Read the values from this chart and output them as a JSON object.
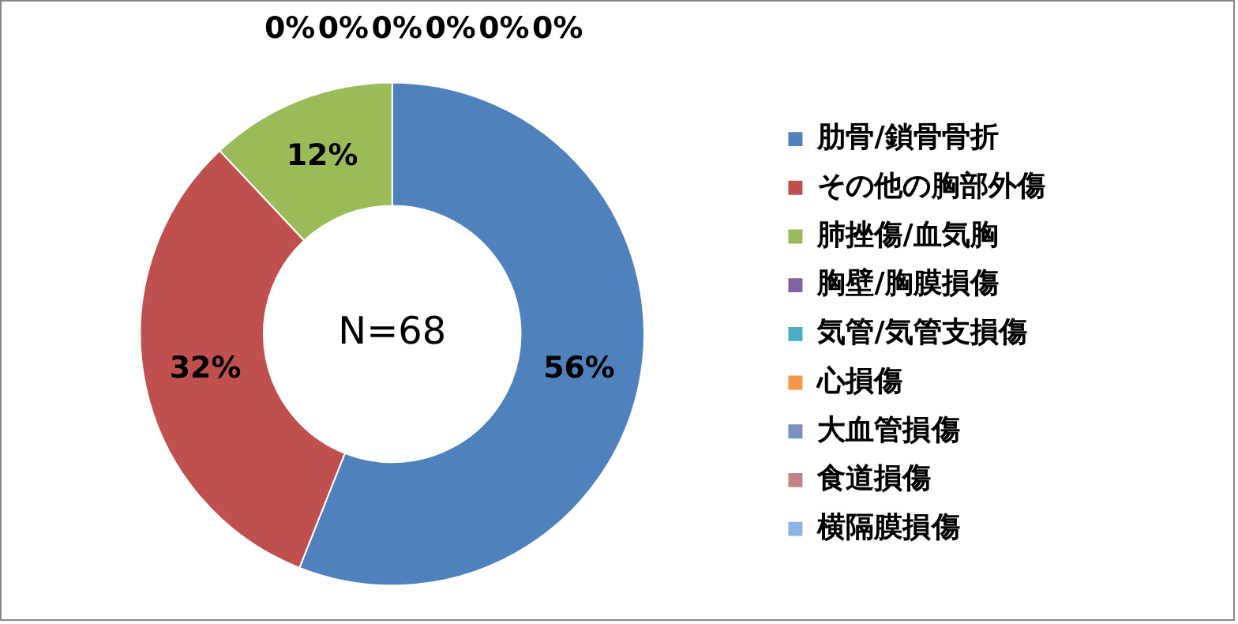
{
  "chart_data": {
    "type": "donut",
    "categories": [
      "肋骨/鎖骨骨折",
      "その他の胸部外傷",
      "肺挫傷/血気胸",
      "胸壁/胸膜損傷",
      "気管/気管支損傷",
      "心損傷",
      "大血管損傷",
      "食道損傷",
      "横隔膜損傷"
    ],
    "values": [
      56,
      32,
      12,
      0,
      0,
      0,
      0,
      0,
      0
    ],
    "value_labels": [
      "56%",
      "32%",
      "12%",
      "0%",
      "0%",
      "0%",
      "0%",
      "0%",
      "0%"
    ],
    "colors": [
      "#4f81bd",
      "#c0504d",
      "#9bbb59",
      "#8064a2",
      "#4bacc6",
      "#f79646",
      "#7891c0",
      "#c28483",
      "#8db3e2"
    ],
    "annotations": [
      "N=68"
    ],
    "legend": "right"
  }
}
